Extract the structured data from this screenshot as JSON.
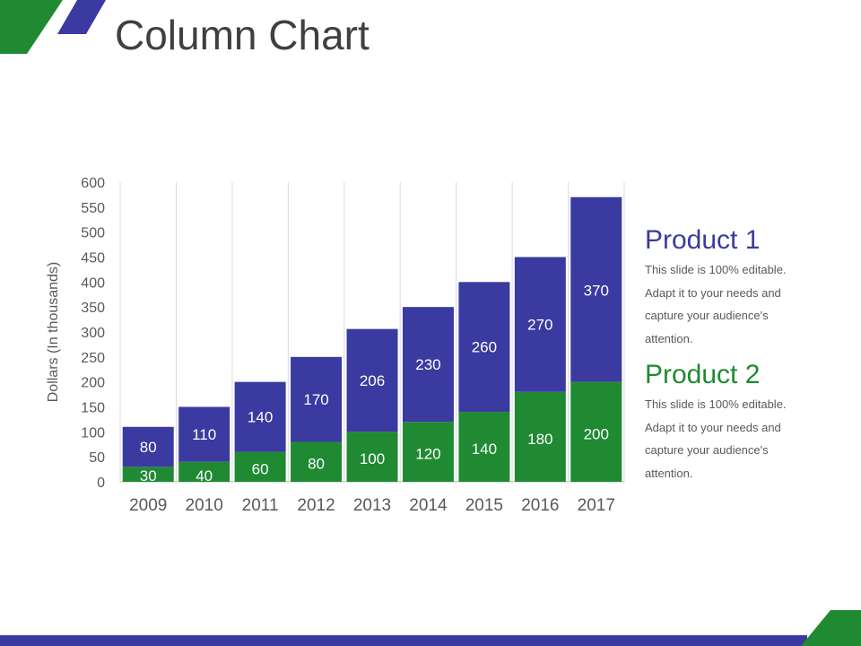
{
  "slide": {
    "title": "Column Chart"
  },
  "colors": {
    "blue": "#3b3aa0",
    "green": "#1f8a32",
    "grid": "#d9d9d9",
    "axis_text": "#595959"
  },
  "legend": [
    {
      "title": "Product 1",
      "description": "This slide is 100% editable. Adapt it to your needs and capture your audience's attention."
    },
    {
      "title": "Product 2",
      "description": "This slide is 100% editable. Adapt it to your needs and capture your audience's attention."
    }
  ],
  "chart_data": {
    "type": "bar",
    "stacked": true,
    "title": "",
    "xlabel": "",
    "ylabel": "Dollars (In thousands)",
    "ylim": [
      0,
      600
    ],
    "ytick_step": 50,
    "categories": [
      "2009",
      "2010",
      "2011",
      "2012",
      "2013",
      "2014",
      "2015",
      "2016",
      "2017"
    ],
    "series": [
      {
        "name": "Product 2",
        "color": "#1f8a32",
        "values": [
          30,
          40,
          60,
          80,
          100,
          120,
          140,
          180,
          200
        ]
      },
      {
        "name": "Product 1",
        "color": "#3b3aa0",
        "values": [
          80,
          110,
          140,
          170,
          206,
          230,
          260,
          270,
          370
        ]
      }
    ],
    "grid": {
      "vertical": true,
      "horizontal": false
    },
    "legend_placement": "right"
  }
}
